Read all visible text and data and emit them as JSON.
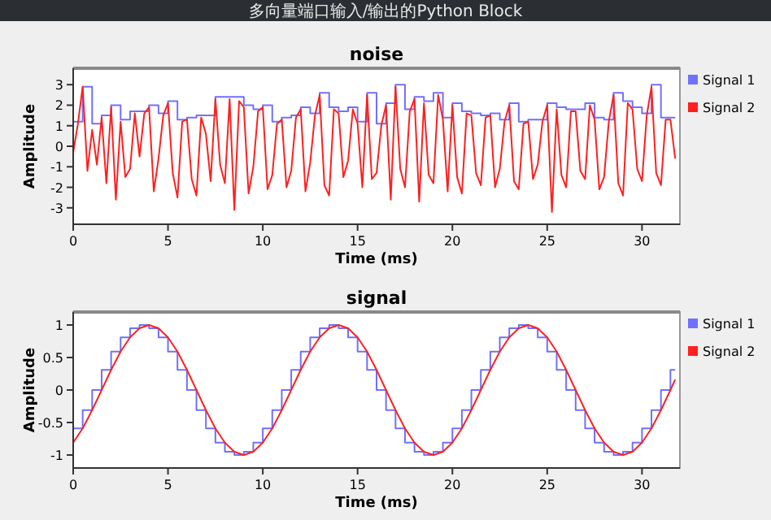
{
  "chart_data": [
    {
      "type": "line",
      "title": "noise",
      "xlabel": "Time (ms)",
      "ylabel": "Amplitude",
      "annotations": [
        "多向量端口输入/输出的Python Block"
      ],
      "xlim": [
        0,
        32
      ],
      "xticks": [
        0,
        5,
        10,
        15,
        20,
        25,
        30
      ],
      "ylim": [
        -3.8,
        3.8
      ],
      "yticks": [
        -3,
        -2,
        -1,
        0,
        1,
        2,
        3
      ],
      "legend": "top right",
      "series": [
        {
          "name": "Signal 1",
          "type": "step",
          "color": "#7070ff",
          "x": [
            0,
            0.5,
            1,
            1.5,
            2,
            2.5,
            3,
            3.5,
            4,
            4.5,
            5,
            5.5,
            6,
            6.5,
            7,
            7.5,
            8,
            8.5,
            9,
            9.5,
            10,
            10.5,
            11,
            11.5,
            12,
            12.5,
            13,
            13.5,
            14,
            14.5,
            15,
            15.5,
            16,
            16.5,
            17,
            17.5,
            18,
            18.5,
            19,
            19.5,
            20,
            20.5,
            21,
            21.5,
            22,
            22.5,
            23,
            23.5,
            24,
            24.5,
            25,
            25.5,
            26,
            26.5,
            27,
            27.5,
            28,
            28.5,
            29,
            29.5,
            30,
            30.5,
            31,
            31.5,
            31.75
          ],
          "values": [
            1.2,
            2.9,
            1.1,
            1.5,
            2.0,
            1.3,
            1.7,
            1.7,
            2.0,
            1.6,
            2.2,
            1.3,
            1.4,
            1.5,
            1.5,
            2.4,
            2.4,
            2.4,
            2.0,
            1.8,
            2.0,
            1.2,
            1.4,
            1.5,
            1.9,
            1.6,
            2.6,
            1.9,
            1.7,
            1.9,
            1.2,
            2.6,
            1.1,
            2.1,
            3.0,
            1.8,
            2.4,
            2.2,
            2.6,
            1.4,
            2.1,
            1.7,
            1.6,
            1.5,
            1.6,
            1.3,
            2.1,
            1.2,
            1.3,
            1.3,
            2.1,
            1.9,
            1.8,
            1.8,
            2.1,
            1.4,
            1.3,
            2.6,
            2.2,
            1.9,
            1.6,
            3.0,
            1.4,
            1.4,
            1.4
          ]
        },
        {
          "name": "Signal 2",
          "type": "line",
          "color": "#ff2020",
          "x": [
            0,
            0.25,
            0.5,
            0.75,
            1,
            1.25,
            1.5,
            1.75,
            2,
            2.25,
            2.5,
            2.75,
            3,
            3.25,
            3.5,
            3.75,
            4,
            4.25,
            4.5,
            4.75,
            5,
            5.25,
            5.5,
            5.75,
            6,
            6.25,
            6.5,
            6.75,
            7,
            7.25,
            7.5,
            7.75,
            8,
            8.25,
            8.5,
            8.75,
            9,
            9.25,
            9.5,
            9.75,
            10,
            10.25,
            10.5,
            10.75,
            11,
            11.25,
            11.5,
            11.75,
            12,
            12.25,
            12.5,
            12.75,
            13,
            13.25,
            13.5,
            13.75,
            14,
            14.25,
            14.5,
            14.75,
            15,
            15.25,
            15.5,
            15.75,
            16,
            16.25,
            16.5,
            16.75,
            17,
            17.25,
            17.5,
            17.75,
            18,
            18.25,
            18.5,
            18.75,
            19,
            19.25,
            19.5,
            19.75,
            20,
            20.25,
            20.5,
            20.75,
            21,
            21.25,
            21.5,
            21.75,
            22,
            22.25,
            22.5,
            22.75,
            23,
            23.25,
            23.5,
            23.75,
            24,
            24.25,
            24.5,
            24.75,
            25,
            25.25,
            25.5,
            25.75,
            26,
            26.25,
            26.5,
            26.75,
            27,
            27.25,
            27.5,
            27.75,
            28,
            28.25,
            28.5,
            28.75,
            29,
            29.25,
            29.5,
            29.75,
            30,
            30.25,
            30.5,
            30.75,
            31,
            31.25,
            31.5,
            31.75
          ],
          "values": [
            -0.3,
            1.1,
            2.9,
            -1.2,
            0.8,
            -0.9,
            1.4,
            -1.8,
            1.9,
            -2.6,
            1.2,
            -1.5,
            -1.1,
            1.6,
            -0.5,
            1.6,
            1.9,
            -2.2,
            -0.6,
            1.5,
            2.1,
            -1.3,
            -2.5,
            1.2,
            1.3,
            -1.6,
            -2.4,
            1.4,
            0.6,
            -1.7,
            2.3,
            -0.9,
            -1.8,
            2.3,
            -3.1,
            2.2,
            1.9,
            -2.3,
            -1.0,
            1.7,
            1.9,
            -2.1,
            -1.4,
            1.1,
            1.3,
            -2.0,
            -1.2,
            1.4,
            1.8,
            -2.2,
            -0.8,
            1.5,
            2.5,
            -1.9,
            -2.4,
            1.8,
            1.6,
            -1.5,
            -0.7,
            1.8,
            1.1,
            -2.0,
            2.5,
            -1.6,
            -1.3,
            1.0,
            2.0,
            -2.6,
            2.9,
            -1.1,
            -2.0,
            1.7,
            2.3,
            -2.7,
            2.1,
            -1.4,
            -1.8,
            2.5,
            1.3,
            -2.2,
            2.0,
            -1.5,
            -2.3,
            1.6,
            1.5,
            -1.3,
            -1.9,
            1.4,
            1.5,
            -2.0,
            -1.1,
            1.2,
            2.0,
            -1.7,
            -2.1,
            1.1,
            1.2,
            -1.6,
            -0.9,
            1.2,
            2.0,
            -3.2,
            1.8,
            -1.4,
            -2.0,
            1.7,
            1.7,
            -1.2,
            -1.6,
            2.0,
            1.3,
            -2.1,
            -1.5,
            1.2,
            2.5,
            -1.8,
            -2.4,
            2.1,
            1.8,
            -1.1,
            -1.7,
            1.5,
            2.9,
            -1.3,
            -1.9,
            1.3,
            1.3,
            -0.6
          ]
        }
      ]
    },
    {
      "type": "line",
      "title": "signal",
      "xlabel": "Time (ms)",
      "ylabel": "Amplitude",
      "xlim": [
        0,
        32
      ],
      "xticks": [
        0,
        5,
        10,
        15,
        20,
        25,
        30
      ],
      "ylim": [
        -1.2,
        1.2
      ],
      "yticks": [
        -1,
        -0.5,
        0,
        0.5,
        1
      ],
      "legend": "top right",
      "series": [
        {
          "name": "Signal 1",
          "type": "step",
          "color": "#7070ff",
          "x": [
            0,
            0.5,
            1,
            1.5,
            2,
            2.5,
            3,
            3.5,
            4,
            4.5,
            5,
            5.5,
            6,
            6.5,
            7,
            7.5,
            8,
            8.5,
            9,
            9.5,
            10,
            10.5,
            11,
            11.5,
            12,
            12.5,
            13,
            13.5,
            14,
            14.5,
            15,
            15.5,
            16,
            16.5,
            17,
            17.5,
            18,
            18.5,
            19,
            19.5,
            20,
            20.5,
            21,
            21.5,
            22,
            22.5,
            23,
            23.5,
            24,
            24.5,
            25,
            25.5,
            26,
            26.5,
            27,
            27.5,
            28,
            28.5,
            29,
            29.5,
            30,
            30.5,
            31,
            31.5,
            31.75
          ],
          "values": [
            -0.59,
            -0.31,
            0,
            0.31,
            0.59,
            0.81,
            0.95,
            1,
            0.95,
            0.81,
            0.59,
            0.31,
            0,
            -0.31,
            -0.59,
            -0.81,
            -0.95,
            -1,
            -0.95,
            -0.81,
            -0.59,
            -0.31,
            0,
            0.31,
            0.59,
            0.81,
            0.95,
            1,
            0.95,
            0.81,
            0.59,
            0.31,
            0,
            -0.31,
            -0.59,
            -0.81,
            -0.95,
            -1,
            -0.95,
            -0.81,
            -0.59,
            -0.31,
            0,
            0.31,
            0.59,
            0.81,
            0.95,
            1,
            0.95,
            0.81,
            0.59,
            0.31,
            0,
            -0.31,
            -0.59,
            -0.81,
            -0.95,
            -1,
            -0.95,
            -0.81,
            -0.59,
            -0.31,
            0,
            0.31,
            0.31
          ]
        },
        {
          "name": "Signal 2",
          "type": "line",
          "color": "#ff2020",
          "x": [
            0,
            0.5,
            1,
            1.5,
            2,
            2.5,
            3,
            3.5,
            4,
            4.5,
            5,
            5.5,
            6,
            6.5,
            7,
            7.5,
            8,
            8.5,
            9,
            9.5,
            10,
            10.5,
            11,
            11.5,
            12,
            12.5,
            13,
            13.5,
            14,
            14.5,
            15,
            15.5,
            16,
            16.5,
            17,
            17.5,
            18,
            18.5,
            19,
            19.5,
            20,
            20.5,
            21,
            21.5,
            22,
            22.5,
            23,
            23.5,
            24,
            24.5,
            25,
            25.5,
            26,
            26.5,
            27,
            27.5,
            28,
            28.5,
            29,
            29.5,
            30,
            30.5,
            31,
            31.5,
            31.75
          ],
          "values": [
            -0.81,
            -0.59,
            -0.31,
            0,
            0.31,
            0.59,
            0.81,
            0.95,
            1,
            0.95,
            0.81,
            0.59,
            0.31,
            0,
            -0.31,
            -0.59,
            -0.81,
            -0.95,
            -1,
            -0.95,
            -0.81,
            -0.59,
            -0.31,
            0,
            0.31,
            0.59,
            0.81,
            0.95,
            1,
            0.95,
            0.81,
            0.59,
            0.31,
            0,
            -0.31,
            -0.59,
            -0.81,
            -0.95,
            -1,
            -0.95,
            -0.81,
            -0.59,
            -0.31,
            0,
            0.31,
            0.59,
            0.81,
            0.95,
            1,
            0.95,
            0.81,
            0.59,
            0.31,
            0,
            -0.31,
            -0.59,
            -0.81,
            -0.95,
            -1,
            -0.95,
            -0.81,
            -0.59,
            -0.31,
            0,
            0.16
          ]
        }
      ]
    }
  ]
}
